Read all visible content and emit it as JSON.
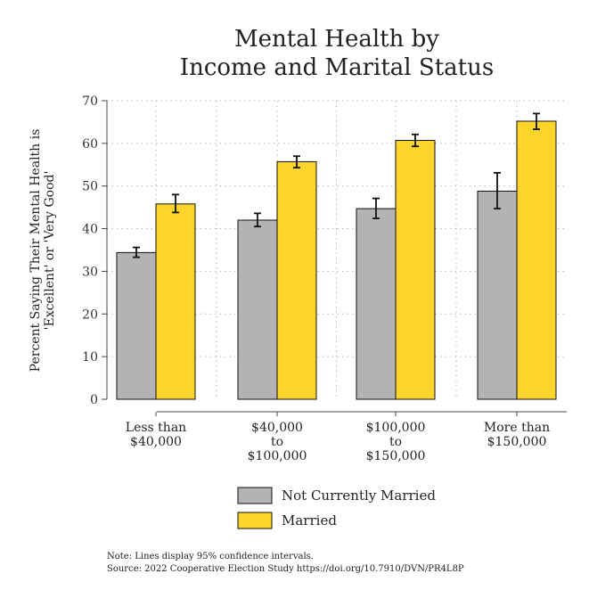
{
  "chart_data": {
    "type": "bar",
    "title": [
      "Mental Health by",
      "Income and Marital Status"
    ],
    "ylabel": [
      "Percent Saying Their Mental Health is",
      "'Excellent' or 'Very Good'"
    ],
    "xlabel": "",
    "ylim": [
      0,
      70
    ],
    "yticks": [
      0,
      10,
      20,
      30,
      40,
      50,
      60,
      70
    ],
    "grid": true,
    "categories": [
      [
        "Less than",
        "$40,000"
      ],
      [
        "$40,000",
        "to",
        "$100,000"
      ],
      [
        "$100,000",
        "to",
        "$150,000"
      ],
      [
        "More than",
        "$150,000"
      ]
    ],
    "series": [
      {
        "name": "Not Currently Married",
        "color": "#b3b3b3",
        "values": [
          34.4,
          42.0,
          44.7,
          48.8
        ],
        "ci_low": [
          33.3,
          40.5,
          42.4,
          44.7
        ],
        "ci_high": [
          35.6,
          43.6,
          47.1,
          53.1
        ]
      },
      {
        "name": "Married",
        "color": "#fcd42b",
        "values": [
          45.8,
          55.7,
          60.7,
          65.2
        ],
        "ci_low": [
          43.8,
          54.3,
          59.3,
          63.3
        ],
        "ci_high": [
          48.0,
          57.0,
          62.1,
          67.0
        ]
      }
    ],
    "legend_position": "bottom",
    "notes": [
      "Note: Lines display 95% confidence intervals.",
      "Source: 2022 Cooperative Election Study https://doi.org/10.7910/DVN/PR4L8P"
    ]
  }
}
